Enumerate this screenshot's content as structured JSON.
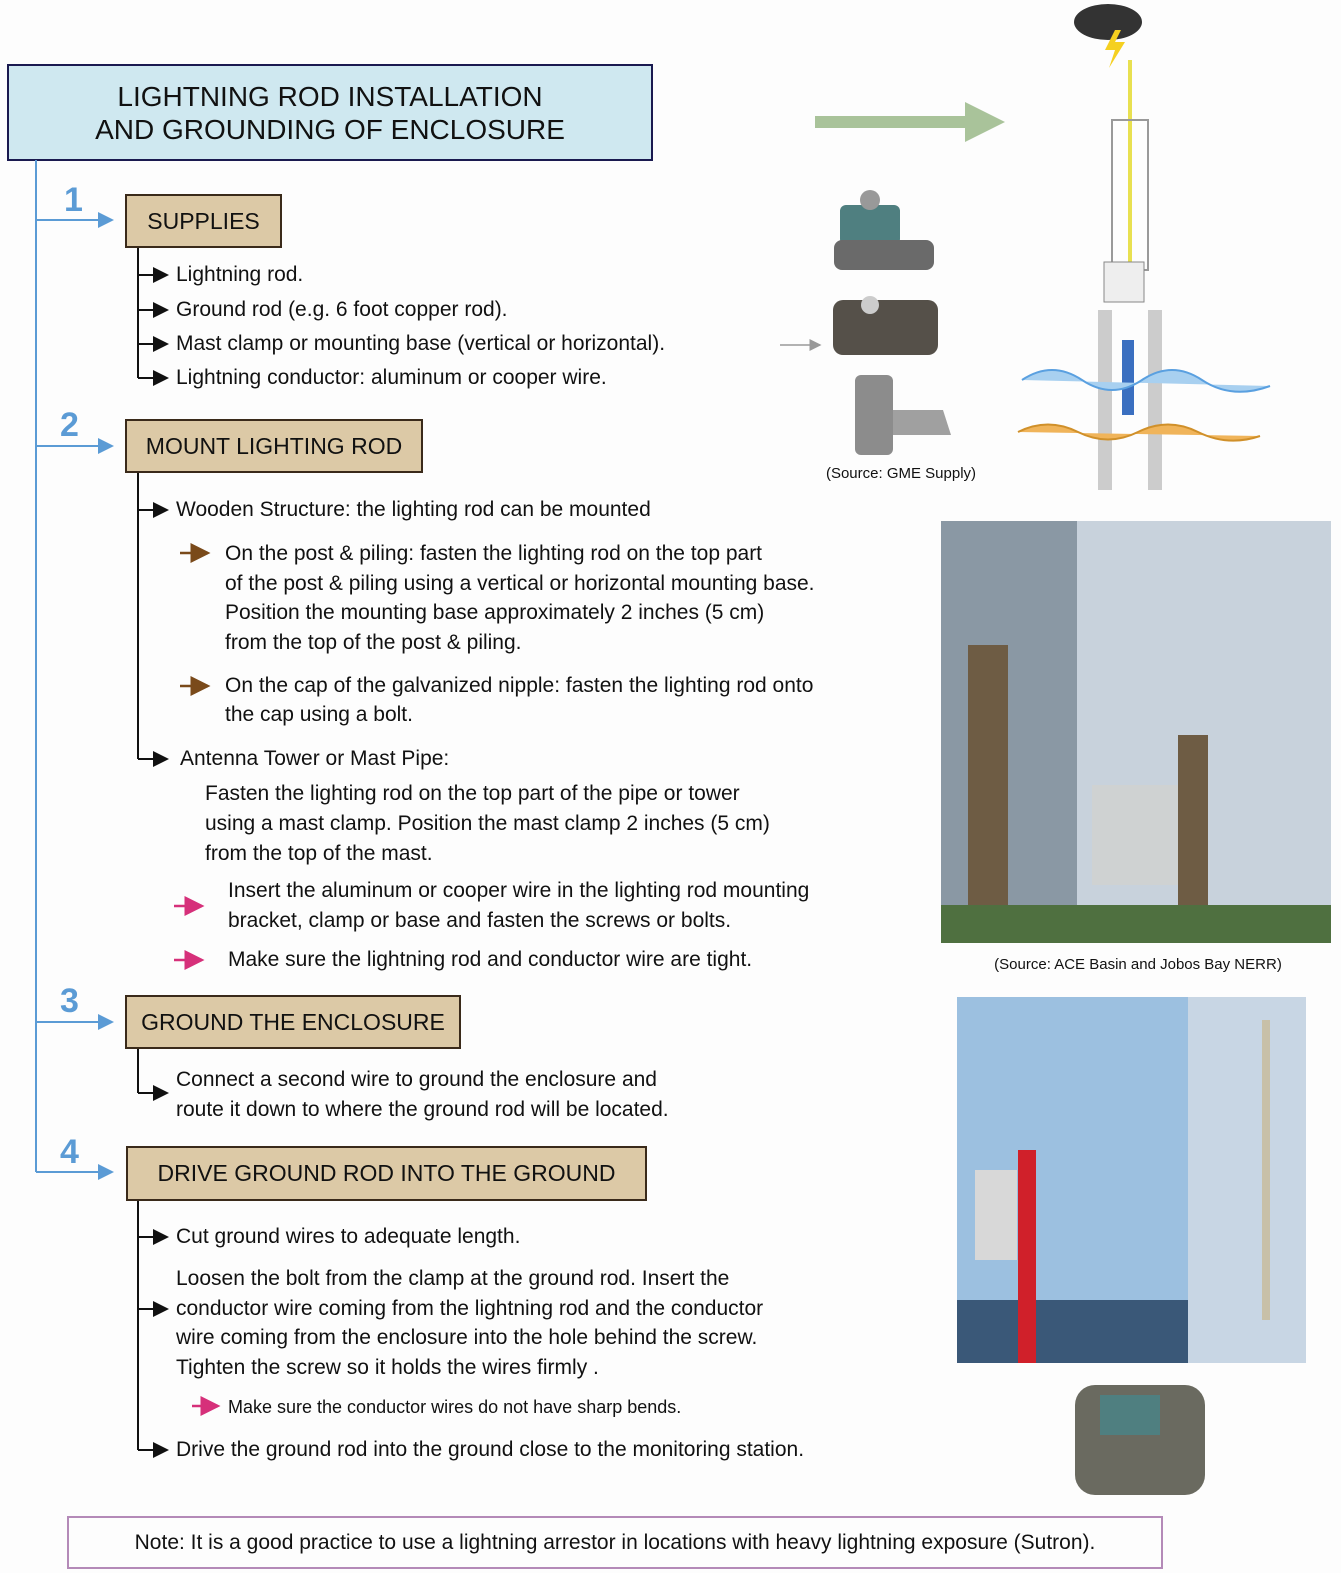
{
  "header": {
    "title_lines": [
      "LIGHTNING ROD INSTALLATION",
      "AND GROUNDING OF ENCLOSURE"
    ]
  },
  "steps": [
    {
      "number": "1",
      "title": "SUPPLIES",
      "items": [
        "Lightning rod.",
        "Ground rod (e.g. 6 foot copper rod).",
        "Mast clamp or mounting base (vertical or horizontal).",
        "Lightning conductor: aluminum or cooper wire."
      ]
    },
    {
      "number": "2",
      "title": "MOUNT LIGHTING ROD",
      "wooden": "Wooden Structure: the lighting rod can be mounted",
      "wooden_items": [
        [
          "On the post & piling: fasten the lighting rod on the top part",
          "of the post & piling using a vertical or horizontal mounting base.",
          "Position the mounting base approximately 2 inches (5 cm)",
          "from the top of the post & piling."
        ],
        [
          "On the cap of the galvanized nipple: fasten the lighting rod onto",
          "the cap using a bolt."
        ]
      ],
      "antenna": "Antenna Tower or Mast Pipe:",
      "antenna_lines": [
        "Fasten the lighting rod on the top part of the pipe or tower",
        "using a mast clamp. Position the mast clamp 2 inches (5 cm)",
        "from the top of the mast."
      ],
      "checks": [
        [
          "Insert the aluminum or cooper wire in the lighting rod mounting",
          "bracket, clamp or base and fasten the screws or bolts."
        ],
        [
          "Make sure the lightning rod and conductor wire are tight."
        ]
      ]
    },
    {
      "number": "3",
      "title": "GROUND THE ENCLOSURE",
      "lines": [
        "Connect a second wire to ground the enclosure and",
        "route it down to where the ground rod will be located."
      ]
    },
    {
      "number": "4",
      "title": "DRIVE GROUND ROD INTO THE GROUND",
      "first": "Cut ground wires to adequate length.",
      "paragraph": [
        "Loosen the bolt from the clamp at the ground rod. Insert the",
        "conductor wire coming from the lightning rod and the conductor",
        "wire coming from the enclosure into the hole behind the screw.",
        "Tighten the screw so it holds the wires firmly ."
      ],
      "check": "Make sure the conductor wires do not have sharp bends.",
      "last": "Drive the ground rod into the ground close to the monitoring station."
    }
  ],
  "sources": [
    "(Source: GME Supply)",
    "(Source: ACE Basin and Jobos Bay NERR)"
  ],
  "note": "Note: It is a good practice to use a lightning arrestor in locations with heavy lightning exposure (Sutron)."
}
